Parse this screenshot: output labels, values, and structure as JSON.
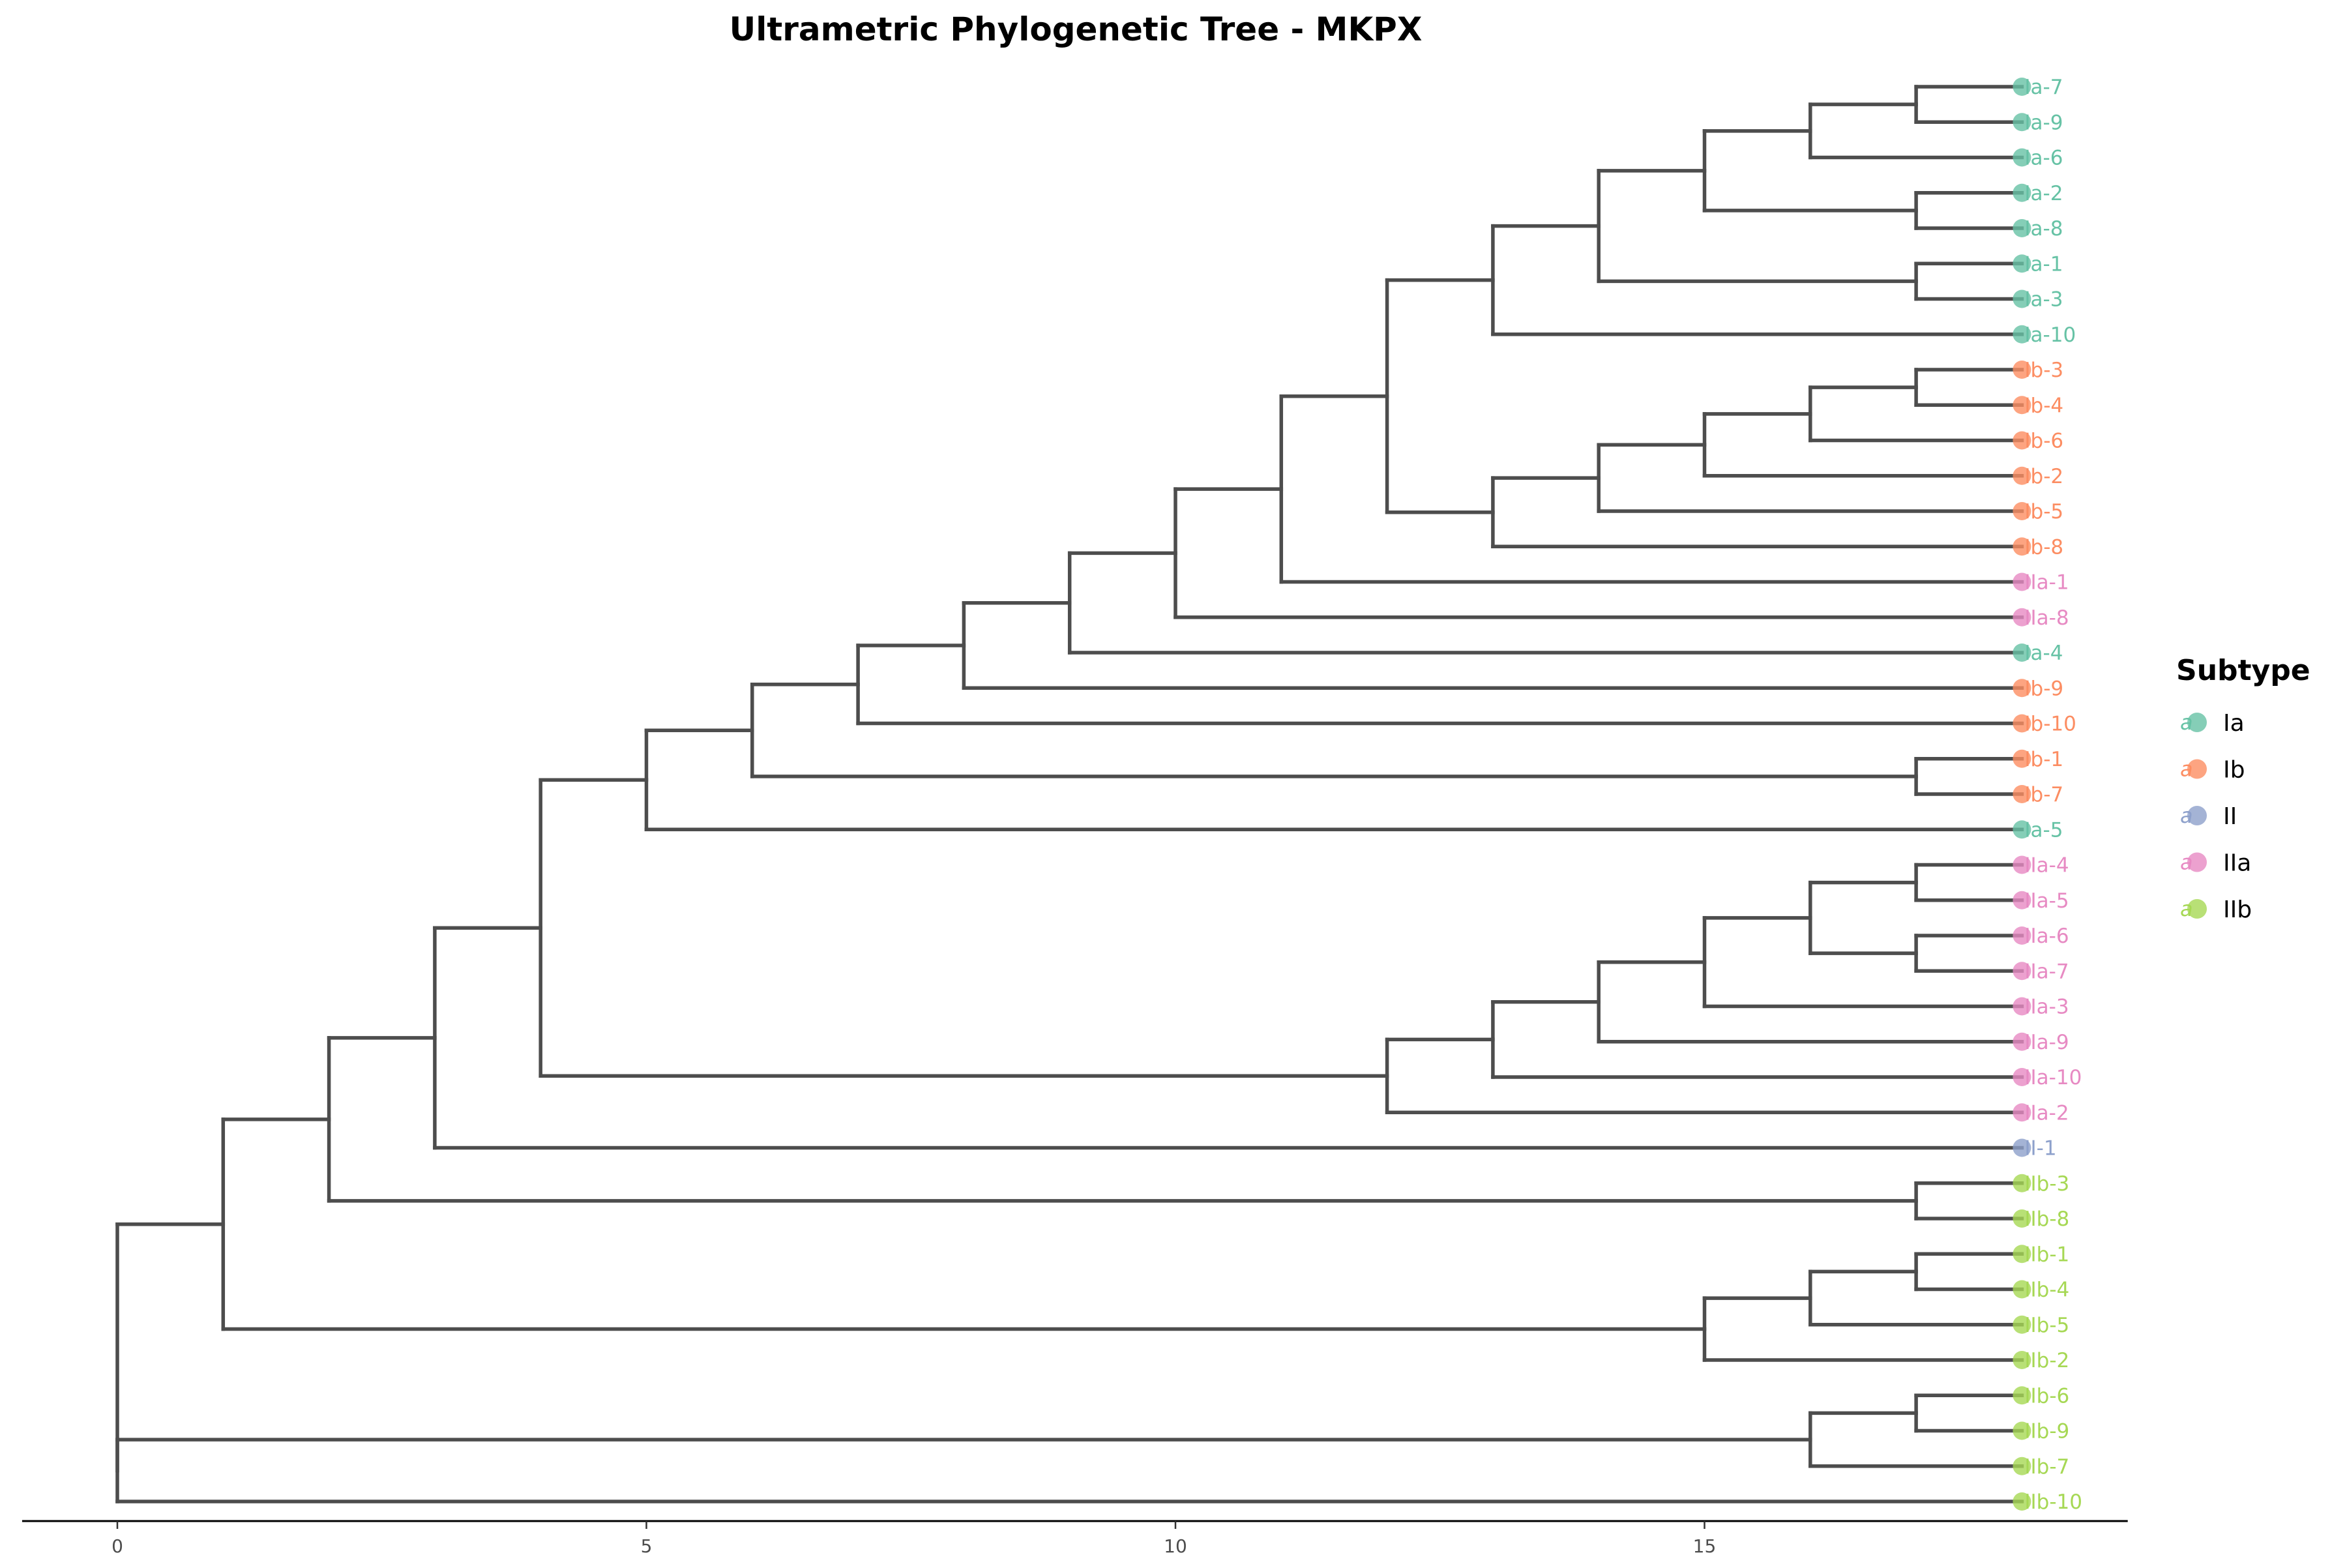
{
  "chart_data": {
    "type": "dendrogram",
    "title": "Ultrametric Phylogenetic Tree - MKPX",
    "xlabel": "",
    "ylabel": "",
    "xlim": [
      -0.9,
      19
    ],
    "xticks": [
      0,
      5,
      10,
      15
    ],
    "tip_depth": 18,
    "colors": {
      "branch": "#4d4d4d",
      "Ia": "#66c2a5",
      "Ib": "#fc8d62",
      "II": "#8da0cb",
      "IIa": "#e78ac3",
      "IIb": "#a6d854"
    },
    "legend": {
      "title": "Subtype",
      "position": "right",
      "key_glyph": "a",
      "entries": [
        "Ia",
        "Ib",
        "II",
        "IIa",
        "IIb"
      ]
    },
    "tips": [
      {
        "label": "Ia-7",
        "subtype": "Ia"
      },
      {
        "label": "Ia-9",
        "subtype": "Ia"
      },
      {
        "label": "Ia-6",
        "subtype": "Ia"
      },
      {
        "label": "Ia-2",
        "subtype": "Ia"
      },
      {
        "label": "Ia-8",
        "subtype": "Ia"
      },
      {
        "label": "Ia-1",
        "subtype": "Ia"
      },
      {
        "label": "Ia-3",
        "subtype": "Ia"
      },
      {
        "label": "Ia-10",
        "subtype": "Ia"
      },
      {
        "label": "Ib-3",
        "subtype": "Ib"
      },
      {
        "label": "Ib-4",
        "subtype": "Ib"
      },
      {
        "label": "Ib-6",
        "subtype": "Ib"
      },
      {
        "label": "Ib-2",
        "subtype": "Ib"
      },
      {
        "label": "Ib-5",
        "subtype": "Ib"
      },
      {
        "label": "Ib-8",
        "subtype": "Ib"
      },
      {
        "label": "IIa-1",
        "subtype": "IIa"
      },
      {
        "label": "IIa-8",
        "subtype": "IIa"
      },
      {
        "label": "Ia-4",
        "subtype": "Ia"
      },
      {
        "label": "Ib-9",
        "subtype": "Ib"
      },
      {
        "label": "Ib-10",
        "subtype": "Ib"
      },
      {
        "label": "Ib-1",
        "subtype": "Ib"
      },
      {
        "label": "Ib-7",
        "subtype": "Ib"
      },
      {
        "label": "Ia-5",
        "subtype": "Ia"
      },
      {
        "label": "IIa-4",
        "subtype": "IIa"
      },
      {
        "label": "IIa-5",
        "subtype": "IIa"
      },
      {
        "label": "IIa-6",
        "subtype": "IIa"
      },
      {
        "label": "IIa-7",
        "subtype": "IIa"
      },
      {
        "label": "IIa-3",
        "subtype": "IIa"
      },
      {
        "label": "IIa-9",
        "subtype": "IIa"
      },
      {
        "label": "IIa-10",
        "subtype": "IIa"
      },
      {
        "label": "IIa-2",
        "subtype": "IIa"
      },
      {
        "label": "II-1",
        "subtype": "II"
      },
      {
        "label": "IIb-3",
        "subtype": "IIb"
      },
      {
        "label": "IIb-8",
        "subtype": "IIb"
      },
      {
        "label": "IIb-1",
        "subtype": "IIb"
      },
      {
        "label": "IIb-4",
        "subtype": "IIb"
      },
      {
        "label": "IIb-5",
        "subtype": "IIb"
      },
      {
        "label": "IIb-2",
        "subtype": "IIb"
      },
      {
        "label": "IIb-6",
        "subtype": "IIb"
      },
      {
        "label": "IIb-9",
        "subtype": "IIb"
      },
      {
        "label": "IIb-7",
        "subtype": "IIb"
      },
      {
        "label": "IIb-10",
        "subtype": "IIb"
      }
    ],
    "tree": {
      "x": 0,
      "children": [
        {
          "x": 1,
          "children": [
            {
              "x": 2,
              "children": [
                {
                  "x": 3,
                  "children": [
                    {
                      "x": 4,
                      "children": [
                        {
                          "x": 5,
                          "children": [
                            {
                              "x": 6,
                              "children": [
                                {
                                  "x": 7,
                                  "children": [
                                    {
                                      "x": 8,
                                      "children": [
                                        {
                                          "x": 9,
                                          "children": [
                                            {
                                              "x": 10,
                                              "children": [
                                                {
                                                  "x": 11,
                                                  "children": [
                                                    {
                                                      "x": 12,
                                                      "children": [
                                                        {
                                                          "x": 13,
                                                          "children": [
                                                            {
                                                              "x": 14,
                                                              "children": [
                                                                {
                                                                  "x": 15,
                                                                  "children": [
                                                                    {
                                                                      "x": 16,
                                                                      "children": [
                                                                        {
                                                                          "x": 17,
                                                                          "children": [
                                                                            {
                                                                              "tip": "Ia-7"
                                                                            },
                                                                            {
                                                                              "tip": "Ia-9"
                                                                            }
                                                                          ]
                                                                        },
                                                                        {
                                                                          "tip": "Ia-6"
                                                                        }
                                                                      ]
                                                                    },
                                                                    {
                                                                      "x": 17,
                                                                      "children": [
                                                                        {
                                                                          "tip": "Ia-2"
                                                                        },
                                                                        {
                                                                          "tip": "Ia-8"
                                                                        }
                                                                      ]
                                                                    }
                                                                  ]
                                                                },
                                                                {
                                                                  "x": 17,
                                                                  "children": [
                                                                    {
                                                                      "tip": "Ia-1"
                                                                    },
                                                                    {
                                                                      "tip": "Ia-3"
                                                                    }
                                                                  ]
                                                                }
                                                              ]
                                                            },
                                                            {
                                                              "tip": "Ia-10"
                                                            }
                                                          ]
                                                        },
                                                        {
                                                          "x": 13,
                                                          "children": [
                                                            {
                                                              "x": 14,
                                                              "children": [
                                                                {
                                                                  "x": 15,
                                                                  "children": [
                                                                    {
                                                                      "x": 16,
                                                                      "children": [
                                                                        {
                                                                          "x": 17,
                                                                          "children": [
                                                                            {
                                                                              "tip": "Ib-3"
                                                                            },
                                                                            {
                                                                              "tip": "Ib-4"
                                                                            }
                                                                          ]
                                                                        },
                                                                        {
                                                                          "tip": "Ib-6"
                                                                        }
                                                                      ]
                                                                    },
                                                                    {
                                                                      "tip": "Ib-2"
                                                                    }
                                                                  ]
                                                                },
                                                                {
                                                                  "tip": "Ib-5"
                                                                }
                                                              ]
                                                            },
                                                            {
                                                              "tip": "Ib-8"
                                                            }
                                                          ]
                                                        }
                                                      ]
                                                    },
                                                    {
                                                      "tip": "IIa-1"
                                                    }
                                                  ]
                                                },
                                                {
                                                  "tip": "IIa-8"
                                                }
                                              ]
                                            },
                                            {
                                              "tip": "Ia-4"
                                            }
                                          ]
                                        },
                                        {
                                          "tip": "Ib-9"
                                        }
                                      ]
                                    },
                                    {
                                      "tip": "Ib-10"
                                    }
                                  ]
                                },
                                {
                                  "x": 17,
                                  "children": [
                                    {
                                      "tip": "Ib-1"
                                    },
                                    {
                                      "tip": "Ib-7"
                                    }
                                  ]
                                }
                              ]
                            },
                            {
                              "tip": "Ia-5"
                            }
                          ]
                        },
                        {
                          "x": 12,
                          "children": [
                            {
                              "x": 13,
                              "children": [
                                {
                                  "x": 14,
                                  "children": [
                                    {
                                      "x": 15,
                                      "children": [
                                        {
                                          "x": 16,
                                          "children": [
                                            {
                                              "x": 17,
                                              "children": [
                                                {
                                                  "tip": "IIa-4"
                                                },
                                                {
                                                  "tip": "IIa-5"
                                                }
                                              ]
                                            },
                                            {
                                              "x": 17,
                                              "children": [
                                                {
                                                  "tip": "IIa-6"
                                                },
                                                {
                                                  "tip": "IIa-7"
                                                }
                                              ]
                                            }
                                          ]
                                        },
                                        {
                                          "tip": "IIa-3"
                                        }
                                      ]
                                    },
                                    {
                                      "tip": "IIa-9"
                                    }
                                  ]
                                },
                                {
                                  "tip": "IIa-10"
                                }
                              ]
                            },
                            {
                              "tip": "IIa-2"
                            }
                          ]
                        }
                      ]
                    },
                    {
                      "tip": "II-1"
                    }
                  ]
                },
                {
                  "x": 17,
                  "children": [
                    {
                      "tip": "IIb-3"
                    },
                    {
                      "tip": "IIb-8"
                    }
                  ]
                }
              ]
            },
            {
              "x": 15,
              "children": [
                {
                  "x": 16,
                  "children": [
                    {
                      "x": 17,
                      "children": [
                        {
                          "tip": "IIb-1"
                        },
                        {
                          "tip": "IIb-4"
                        }
                      ]
                    },
                    {
                      "tip": "IIb-5"
                    }
                  ]
                },
                {
                  "tip": "IIb-2"
                }
              ]
            }
          ]
        },
        {
          "x": 0,
          "children": [
            {
              "x": 16,
              "children": [
                {
                  "x": 17,
                  "children": [
                    {
                      "tip": "IIb-6"
                    },
                    {
                      "tip": "IIb-9"
                    }
                  ]
                },
                {
                  "tip": "IIb-7"
                }
              ]
            },
            {
              "tip": "IIb-10"
            }
          ]
        }
      ]
    }
  }
}
